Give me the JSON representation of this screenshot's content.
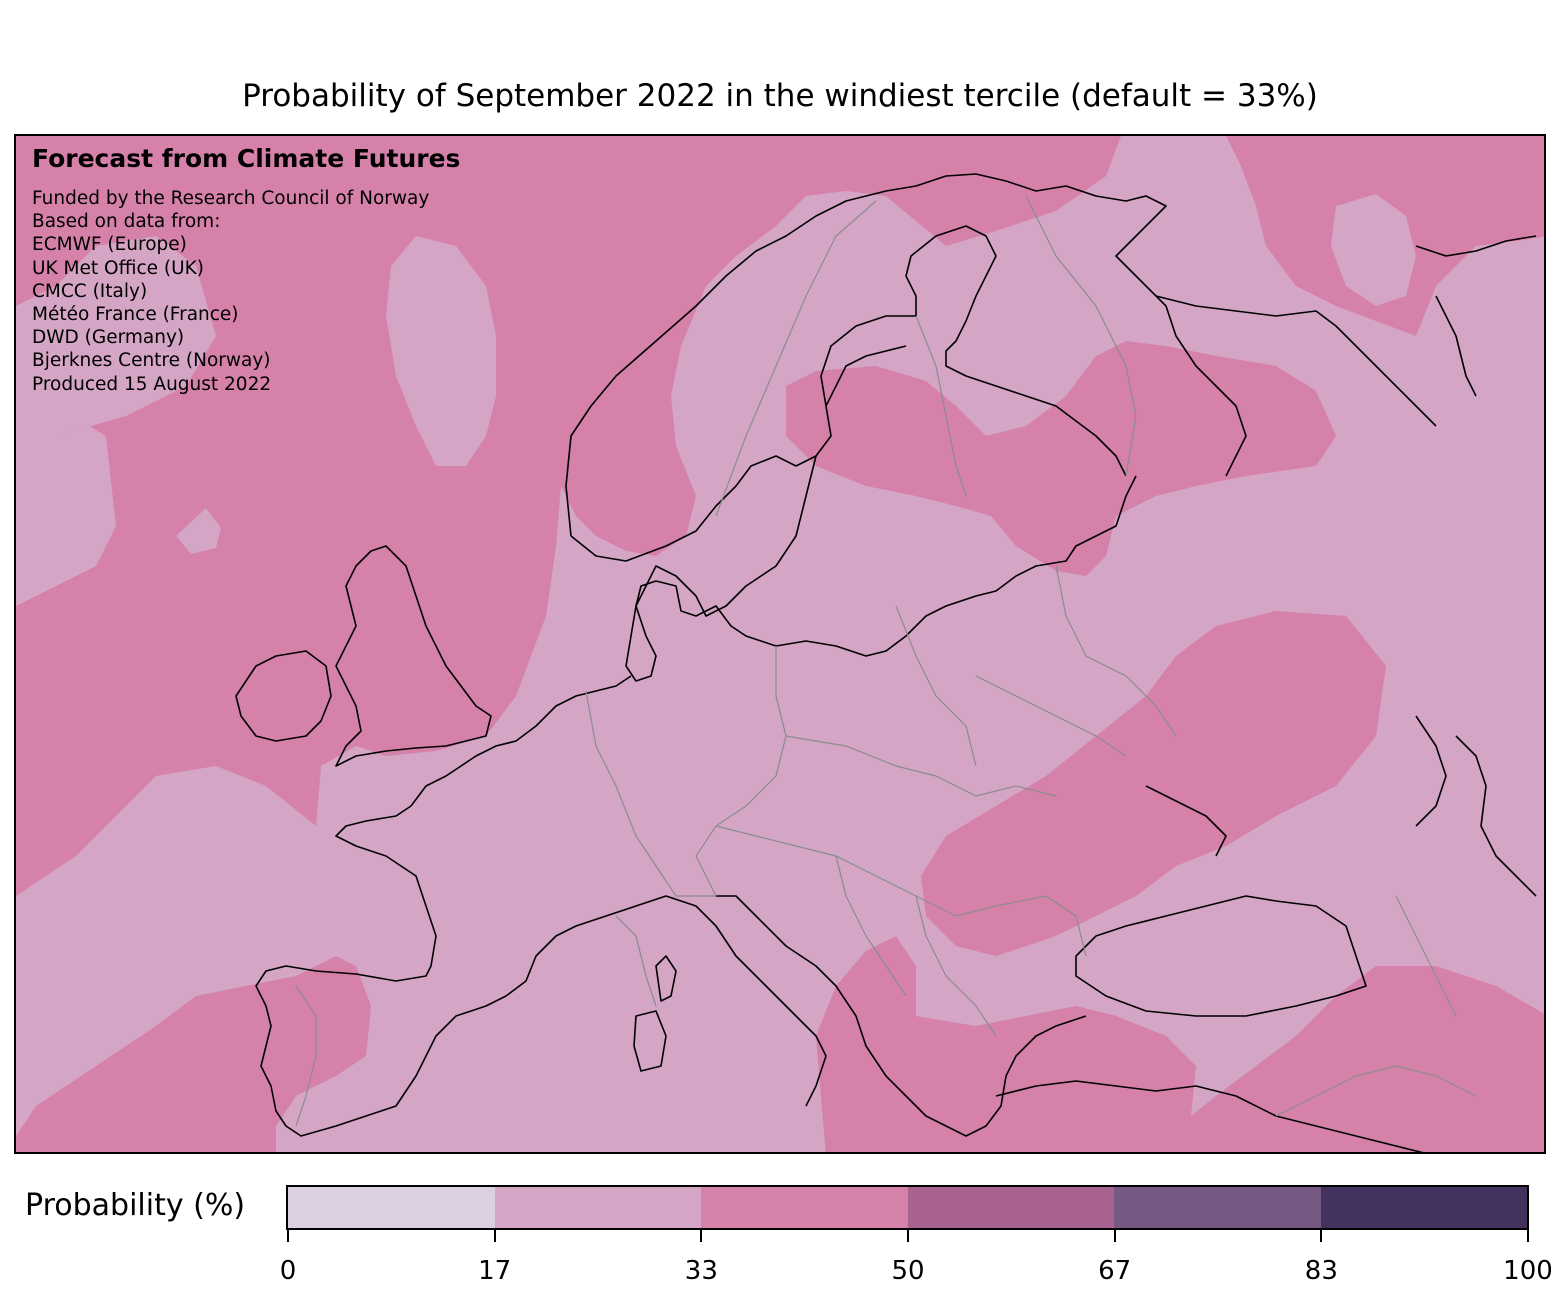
{
  "title": "Probability of September 2022 in the windiest tercile (default = 33%)",
  "caption": {
    "heading": "Forecast from Climate Futures",
    "lines": [
      "Funded by the Research Council of Norway",
      "Based on data from:",
      "ECMWF (Europe)",
      "UK Met Office (UK)",
      "CMCC (Italy)",
      "Météo France (France)",
      "DWD (Germany)",
      "Bjerknes Centre (Norway)",
      "Produced 15 August 2022"
    ]
  },
  "colorbar": {
    "label": "Probability (%)",
    "ticks": [
      "0",
      "17",
      "33",
      "50",
      "67",
      "83",
      "100"
    ],
    "colors": [
      "#dccfe1",
      "#d4a5c5",
      "#d581aa",
      "#a86391",
      "#765983",
      "#43325d"
    ]
  },
  "map_colors": {
    "land_sea_17_33": "#d4a5c5",
    "band_33_50": "#d581aa",
    "coastline": "#000000",
    "borders": "#8c8c8c"
  }
}
